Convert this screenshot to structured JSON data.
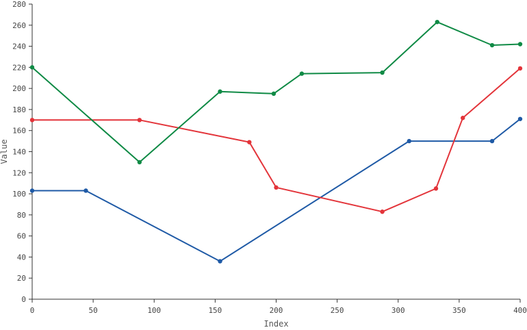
{
  "chart_data": {
    "type": "line",
    "xlabel": "Index",
    "ylabel": "Value",
    "xlim": [
      0,
      400
    ],
    "ylim": [
      0,
      280
    ],
    "xticks": [
      0,
      50,
      100,
      150,
      200,
      250,
      300,
      350,
      400
    ],
    "yticks": [
      0,
      20,
      40,
      60,
      80,
      100,
      120,
      140,
      160,
      180,
      200,
      220,
      240,
      260,
      280
    ],
    "grid": false,
    "series": [
      {
        "color": "#1f5aa6",
        "points": [
          [
            0,
            103
          ],
          [
            44,
            103
          ],
          [
            154,
            36
          ],
          [
            309,
            150
          ],
          [
            377,
            150
          ],
          [
            400,
            171
          ]
        ]
      },
      {
        "color": "#e3343a",
        "points": [
          [
            0,
            170
          ],
          [
            88,
            170
          ],
          [
            178,
            149
          ],
          [
            200,
            106
          ],
          [
            287,
            83
          ],
          [
            331,
            105
          ],
          [
            353,
            172
          ],
          [
            400,
            219
          ]
        ]
      },
      {
        "color": "#0f8a45",
        "points": [
          [
            0,
            220
          ],
          [
            88,
            130
          ],
          [
            154,
            197
          ],
          [
            198,
            195
          ],
          [
            221,
            214
          ],
          [
            287,
            215
          ],
          [
            332,
            263
          ],
          [
            377,
            241
          ],
          [
            400,
            242
          ]
        ]
      }
    ]
  }
}
